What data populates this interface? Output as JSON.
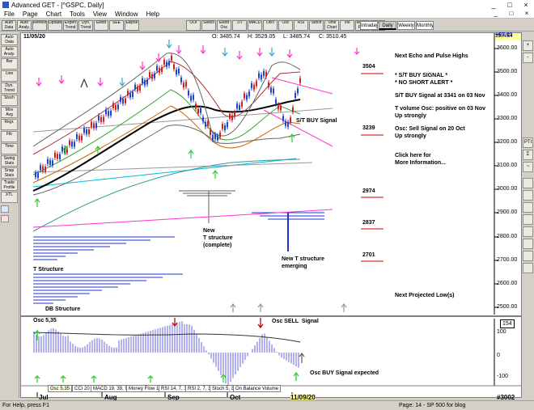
{
  "window": {
    "title": "Advanced GET - [^GSPC, Daily]",
    "controls": [
      "_",
      "□",
      "×"
    ]
  },
  "menu": {
    "items": [
      "File",
      "Page",
      "Chart",
      "Tools",
      "View",
      "Window",
      "Help"
    ],
    "mdi_controls": [
      "_",
      "□",
      "×"
    ]
  },
  "toolbar": {
    "buttons": [
      "Auto Data",
      "Auto Analy.",
      "Refresh",
      "Update",
      "Expert Trend",
      "Dyn. Trend",
      "Elliott",
      "SEE",
      "Ellipse",
      "OOI",
      "Select",
      "Elliott Osc",
      "JTI",
      "MACD",
      "OBV",
      "Osc",
      "RSI",
      "Stoch",
      "Time Chart",
      "Vol",
      "Money Flow",
      "Scan"
    ],
    "tabs": [
      "Intraday",
      "Daily",
      "Weekly",
      "Monthly"
    ],
    "active_tab": "Daily"
  },
  "left_toolbar": [
    "Auto Data",
    "Auto Analy.",
    "Bar",
    "Line",
    "Dyn. Trend",
    "Stoch",
    "Mov Avg",
    "Regr.",
    "Fib",
    "Time",
    "Swing Stats",
    "Snap Stats",
    "Trade Profile",
    "XTL"
  ],
  "right_toolbar": [
    "+",
    "-",
    "PTI",
    "Σ",
    "~"
  ],
  "chart": {
    "date_label": "11/05/20",
    "ohlc": {
      "open": "O: 3485.74",
      "high": "H: 3529.05",
      "low": "L: 3485.74",
      "close": "C: 3510.45"
    },
    "price_box_top": "3504.54",
    "price_change": "+67.01",
    "y_labels": [
      "3600.00",
      "3500.00",
      "3400.00",
      "3300.00",
      "3200.00",
      "3100.00",
      "3000.00",
      "2900.00",
      "2800.00",
      "2700.00",
      "2600.00",
      "2500.00"
    ],
    "key_levels": [
      {
        "value": "3504",
        "color": "#cc0000"
      },
      {
        "value": "3239",
        "color": "#cc0000"
      },
      {
        "value": "2974",
        "color": "#cc0000"
      },
      {
        "value": "2837",
        "color": "#cc0000"
      },
      {
        "value": "2701",
        "color": "#cc0000"
      }
    ],
    "annotations": {
      "next_highs": "Next Echo and Pulse Highs",
      "st_buy": "* S/T BUY SIGNAL *",
      "no_short": "* NO SHORT ALERT *",
      "st_buy_at": "S/T BUY Signal at 3341 on 03 Nov",
      "t_volume": "T volume Osc: positive on 03 Nov\nUp strongly",
      "osc_sell": "Osc: Sell Signal on 20 Oct\nUp strongly",
      "click_here": "Click here for\nMore Information...",
      "st_buy_signal": "S/T BUY Signal",
      "new_t_complete": "New\nT structure\n(complete)",
      "new_t_emerging": "New T structure\nemerging",
      "t_structure": "T Structure",
      "db_structure": "DB Structure",
      "next_lows": "Next Projected Low(s)"
    },
    "x_labels": [
      "Jul",
      "Aug",
      "Sep",
      "Oct",
      "11/09/20"
    ],
    "corner_value": "#3002"
  },
  "oscillator": {
    "label": "Osc 5,35",
    "sell_label": "Osc SELL  Signal",
    "buy_label": "Osc BUY Signal expected",
    "current_value": "154",
    "y_labels": [
      "100",
      "0",
      "-100"
    ],
    "tabs": [
      "Osc 5,35",
      "CCI 20",
      "MACD 19, 39, 9",
      "Money Flow 11",
      "RSI 14, 7, 3",
      "RSI 2, 7, 3",
      "Stoch 5, 3, 3",
      "On Balance Volume"
    ],
    "active_tab": "Osc 5,35"
  },
  "status": {
    "left": "For Help, press F1",
    "right": "Page: 14 - SP 500 for blog"
  }
}
